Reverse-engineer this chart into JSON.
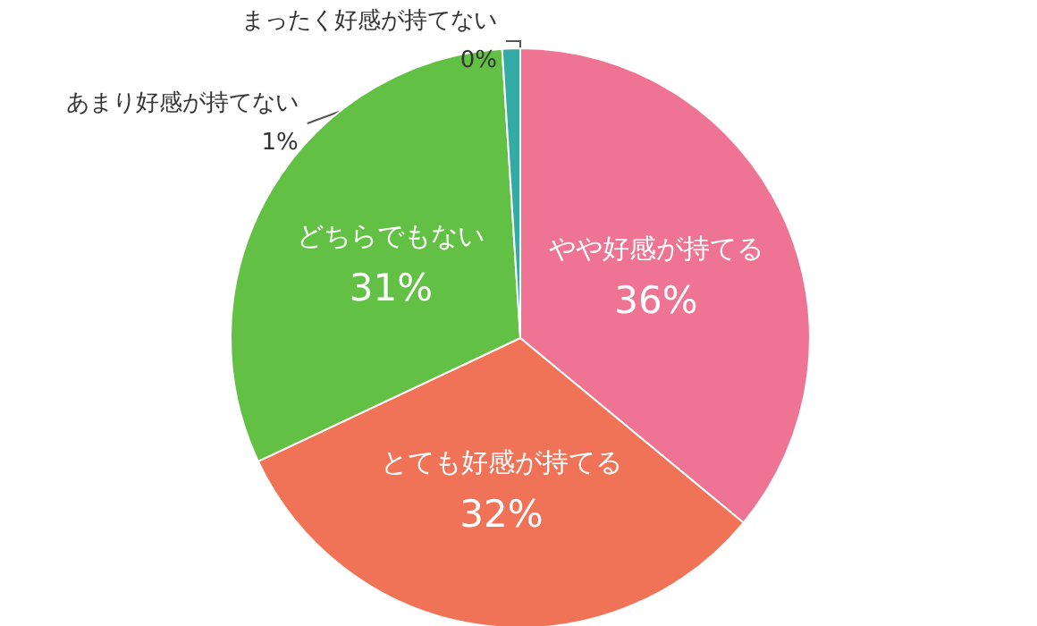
{
  "chart_data": {
    "type": "pie",
    "categories": [
      "やや好感が持てる",
      "とても好感が持てる",
      "どちらでもない",
      "あまり好感が持てない",
      "まったく好感が持てない"
    ],
    "values": [
      36,
      32,
      31,
      1,
      0
    ],
    "colors": [
      "#ef7493",
      "#f07257",
      "#62c144",
      "#34aaa5",
      "#2f7fbf"
    ],
    "value_labels": [
      "36%",
      "32%",
      "31%",
      "1%",
      "0%"
    ]
  }
}
